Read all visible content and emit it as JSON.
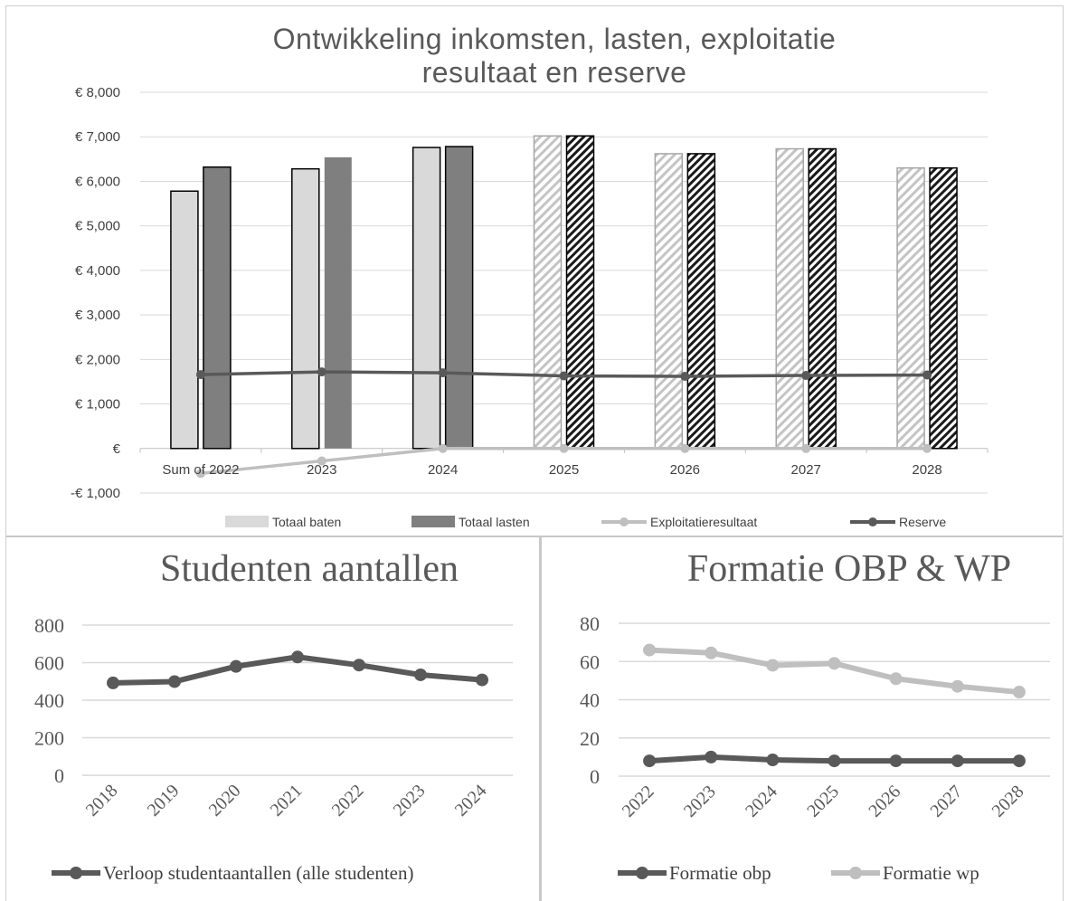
{
  "chart_data": [
    {
      "type": "bar",
      "title": "Ontwikkeling inkomsten, lasten, exploitatie resultaat en reserve",
      "title_lines": [
        "Ontwikkeling inkomsten, lasten, exploitatie",
        "resultaat en reserve"
      ],
      "categories": [
        "Sum of 2022",
        "2023",
        "2024",
        "2025",
        "2026",
        "2027",
        "2028"
      ],
      "ylim": [
        -1000,
        8000
      ],
      "y_ticks": [
        "-€ 1,000",
        "€",
        "€ 1,000",
        "€ 2,000",
        "€ 3,000",
        "€ 4,000",
        "€ 5,000",
        "€ 6,000",
        "€ 7,000",
        "€ 8,000"
      ],
      "y_tick_values": [
        -1000,
        0,
        1000,
        2000,
        3000,
        4000,
        5000,
        6000,
        7000,
        8000
      ],
      "grid": true,
      "legend_position": "bottom",
      "series": [
        {
          "name": "Totaal baten",
          "kind": "bar",
          "color": "#d9d9d9",
          "values": [
            5780,
            6280,
            6760,
            7020,
            6620,
            6730,
            6300
          ]
        },
        {
          "name": "Totaal lasten",
          "kind": "bar",
          "color": "#7f7f7f",
          "values": [
            6320,
            6540,
            6780,
            7020,
            6620,
            6730,
            6300
          ]
        },
        {
          "name": "Exploitatieresultaat",
          "kind": "line",
          "color": "#bfbfbf",
          "values": [
            -560,
            -280,
            0,
            0,
            0,
            0,
            0
          ]
        },
        {
          "name": "Reserve",
          "kind": "line",
          "color": "#595959",
          "values": [
            1660,
            1720,
            1700,
            1630,
            1620,
            1640,
            1650
          ]
        }
      ],
      "hatched_categories": [
        "2025",
        "2026",
        "2027",
        "2028"
      ]
    },
    {
      "type": "line",
      "title": "Studenten aantallen",
      "categories": [
        "2018",
        "2019",
        "2020",
        "2021",
        "2022",
        "2023",
        "2024"
      ],
      "ylim": [
        0,
        800
      ],
      "y_ticks": [
        "0",
        "200",
        "400",
        "600",
        "800"
      ],
      "y_tick_values": [
        0,
        200,
        400,
        600,
        800
      ],
      "grid": true,
      "legend_position": "bottom",
      "series": [
        {
          "name": "Verloop studentaantallen (alle studenten)",
          "color": "#595959",
          "values": [
            492,
            499,
            580,
            630,
            587,
            535,
            508
          ]
        }
      ]
    },
    {
      "type": "line",
      "title": "Formatie OBP & WP",
      "categories": [
        "2022",
        "2023",
        "2024",
        "2025",
        "2026",
        "2027",
        "2028"
      ],
      "ylim": [
        0,
        80
      ],
      "y_ticks": [
        "0",
        "20",
        "40",
        "60",
        "80"
      ],
      "y_tick_values": [
        0,
        20,
        40,
        60,
        80
      ],
      "grid": true,
      "legend_position": "bottom",
      "series": [
        {
          "name": "Formatie obp",
          "color": "#595959",
          "values": [
            8,
            10,
            8.5,
            8,
            8,
            8,
            8
          ]
        },
        {
          "name": "Formatie wp",
          "color": "#bfbfbf",
          "values": [
            66,
            64.5,
            58,
            59,
            51,
            47,
            44
          ]
        }
      ]
    }
  ]
}
